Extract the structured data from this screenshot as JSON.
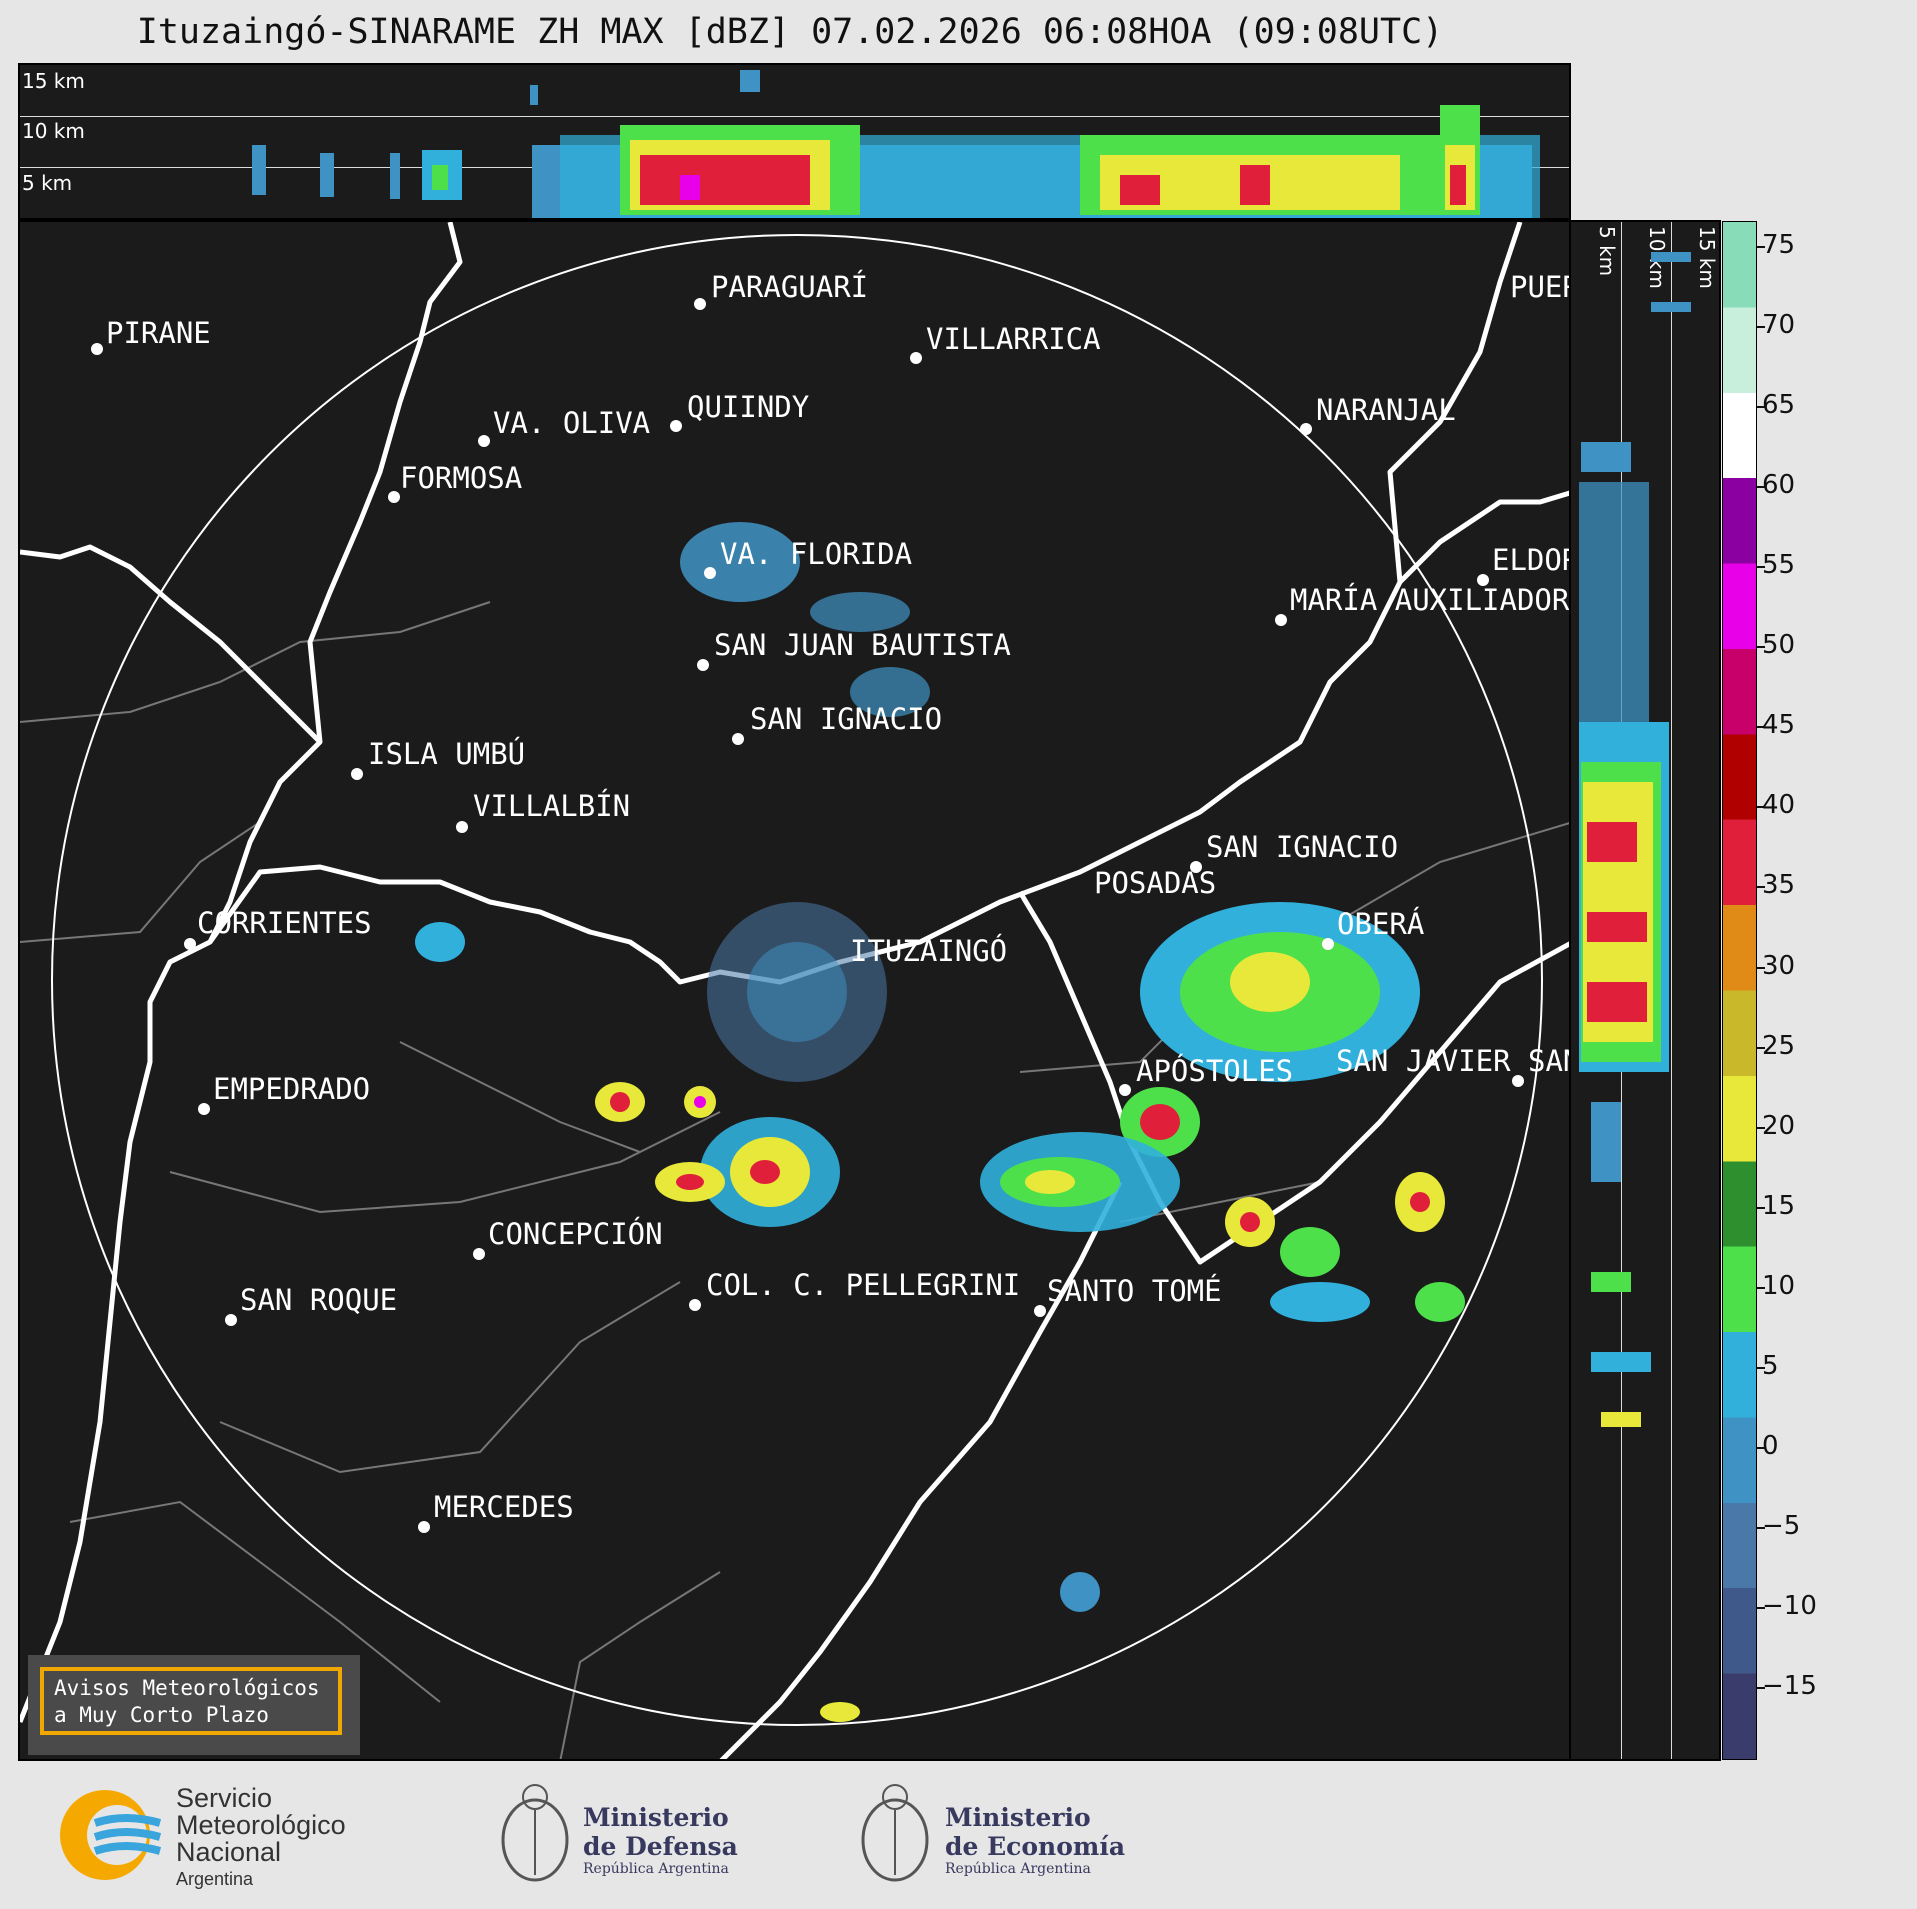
{
  "title": "Ituzaingó-SINARAME ZH MAX [dBZ] 07.02.2026 06:08HOA (09:08UTC)",
  "top_panel": {
    "height_labels": [
      "15 km",
      "10 km",
      "5 km"
    ]
  },
  "side_panel": {
    "height_labels": [
      "5 km",
      "10 km",
      "15 km"
    ]
  },
  "colorbar": {
    "ticks": [
      "75",
      "70",
      "65",
      "60",
      "55",
      "50",
      "45",
      "40",
      "35",
      "30",
      "25",
      "20",
      "15",
      "10",
      "5",
      "0",
      "−5",
      "−10",
      "−15"
    ],
    "colors": [
      "#3a3d6b",
      "#3f5a8a",
      "#4a78a8",
      "#3f93c4",
      "#31b0dc",
      "#4ee04a",
      "#2e8f2e",
      "#e8e83a",
      "#c8b82a",
      "#e08a18",
      "#e0203a",
      "#b00000",
      "#c8006a",
      "#e800e8",
      "#8a00a0",
      "#ffffff",
      "#c8eedc",
      "#88dcb8"
    ]
  },
  "cities": [
    {
      "name": "PIRANE"
    },
    {
      "name": "PARAGUARÍ"
    },
    {
      "name": "VILLARRICA"
    },
    {
      "name": "QUIINDY"
    },
    {
      "name": "VA. OLIVA"
    },
    {
      "name": "FORMOSA"
    },
    {
      "name": "NARANJAL"
    },
    {
      "name": "VA. FLORIDA"
    },
    {
      "name": "SAN JUAN BAUTISTA"
    },
    {
      "name": "SAN IGNACIO"
    },
    {
      "name": "ISLA UMBÚ"
    },
    {
      "name": "VILLALBÍN"
    },
    {
      "name": "SAN IGNACIO"
    },
    {
      "name": "POSADAS"
    },
    {
      "name": "CORRIENTES"
    },
    {
      "name": "OBERÁ"
    },
    {
      "name": "ITUZAINGÓ"
    },
    {
      "name": "APÓSTOLES"
    },
    {
      "name": "SAN JAVIER"
    },
    {
      "name": "SAN"
    },
    {
      "name": "EMPEDRADO"
    },
    {
      "name": "CONCEPCIÓN"
    },
    {
      "name": "COL. C. PELLEGRINI"
    },
    {
      "name": "SANTO TOMÉ"
    },
    {
      "name": "SAN ROQUE"
    },
    {
      "name": "MERCEDES"
    },
    {
      "name": "MARÍA AUXILIADORA"
    },
    {
      "name": "ELDORADO"
    },
    {
      "name": "PUERTO"
    }
  ],
  "avisos": {
    "line1": "Avisos Meteorológicos",
    "line2": "a Muy Corto Plazo"
  },
  "footer": {
    "smn": {
      "line1": "Servicio",
      "line2": "Meteorológico",
      "line3": "Nacional",
      "line4": "Argentina"
    },
    "defensa": {
      "line1": "Ministerio",
      "line2": "de Defensa",
      "line3": "República Argentina"
    },
    "economia": {
      "line1": "Ministerio",
      "line2": "de Economía",
      "line3": "República Argentina"
    }
  }
}
